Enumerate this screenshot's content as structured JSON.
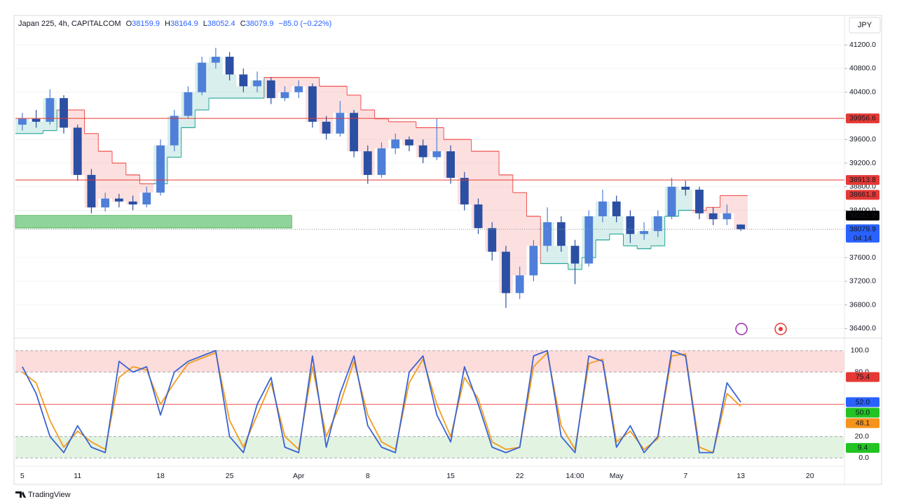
{
  "header": {
    "symbol": "Japan 225, 4h, CAPITALCOM",
    "ohlc": [
      {
        "key": "O",
        "value": 38159.9
      },
      {
        "key": "H",
        "value": 38164.9
      },
      {
        "key": "L",
        "value": 38052.4
      },
      {
        "key": "C",
        "value": 38079.9
      }
    ],
    "change": "−85.0 (−0.22%)"
  },
  "currency": "JPY",
  "footer": "TradingView",
  "chart_data": [
    {
      "type": "candlestick",
      "categories": [
        "5",
        null,
        null,
        null,
        "11",
        null,
        null,
        null,
        null,
        null,
        "18",
        null,
        null,
        null,
        null,
        "25",
        null,
        null,
        null,
        null,
        "Apr",
        null,
        null,
        null,
        null,
        "8",
        null,
        null,
        null,
        null,
        null,
        "15",
        null,
        null,
        null,
        null,
        "22",
        null,
        null,
        null,
        "14:00",
        null,
        null,
        "May",
        null,
        null,
        null,
        null,
        "7",
        null,
        null,
        null,
        "13",
        null,
        null,
        null,
        null,
        "20",
        null,
        null
      ],
      "open": [
        39850,
        39950,
        39900,
        40300,
        39800,
        39000,
        38450,
        38600,
        38550,
        38500,
        38700,
        39500,
        40000,
        40400,
        40900,
        41000,
        40700,
        40500,
        40600,
        40300,
        40400,
        40500,
        39900,
        39700,
        40050,
        39400,
        39000,
        39450,
        39600,
        39500,
        39300,
        39400,
        38950,
        38500,
        38100,
        37700,
        37000,
        37300,
        37800,
        38200,
        37800,
        37500,
        38300,
        38550,
        38300,
        38000,
        38050,
        38300,
        38800,
        38750,
        38350,
        38250,
        38159.9,
        null,
        null,
        null,
        null,
        null,
        null,
        null
      ],
      "high": [
        40050,
        40100,
        40450,
        40350,
        39850,
        39100,
        38700,
        38680,
        38650,
        38800,
        39600,
        40100,
        40500,
        41000,
        41150,
        41080,
        40800,
        40750,
        40650,
        40500,
        40600,
        40550,
        40000,
        40250,
        40100,
        39500,
        39550,
        39700,
        39650,
        39600,
        39950,
        39500,
        39050,
        38600,
        38200,
        37800,
        37450,
        37900,
        38450,
        38300,
        37900,
        38400,
        38750,
        38650,
        38400,
        38200,
        38400,
        38950,
        38900,
        38800,
        38450,
        38500,
        38164.9,
        null,
        null,
        null,
        null,
        null,
        null,
        null
      ],
      "low": [
        39750,
        39800,
        39850,
        39700,
        38900,
        38350,
        38380,
        38450,
        38400,
        38450,
        38650,
        39400,
        39950,
        40350,
        40800,
        40600,
        40400,
        40400,
        40200,
        40250,
        40300,
        39800,
        39600,
        39650,
        39300,
        38850,
        38950,
        39350,
        39400,
        39200,
        39250,
        38850,
        38400,
        38000,
        37550,
        36750,
        36900,
        37200,
        37700,
        37700,
        37150,
        37450,
        38200,
        38200,
        37850,
        37900,
        37950,
        38250,
        38650,
        38250,
        38150,
        38150,
        38052.4,
        null,
        null,
        null,
        null,
        null,
        null,
        null
      ],
      "close": [
        39950,
        39900,
        40300,
        39800,
        39000,
        38450,
        38600,
        38550,
        38500,
        38700,
        39500,
        40000,
        40400,
        40900,
        41000,
        40700,
        40500,
        40600,
        40300,
        40400,
        40500,
        39900,
        39700,
        40050,
        39400,
        39000,
        39450,
        39600,
        39500,
        39300,
        39400,
        38950,
        38500,
        38100,
        37700,
        37000,
        37300,
        37800,
        38200,
        37800,
        37500,
        38300,
        38550,
        38300,
        38000,
        38050,
        38300,
        38800,
        38750,
        38350,
        38250,
        38350,
        38079.9,
        null,
        null,
        null,
        null,
        null,
        null,
        null
      ],
      "up_color": "#4f7fd8",
      "down_color": "#2b4fa3",
      "ylim": [
        36250,
        41700
      ],
      "yticks": [
        {
          "value": 36400,
          "label": "36400.0"
        },
        {
          "value": 36800,
          "label": "36800.0"
        },
        {
          "value": 37200,
          "label": "37200.0"
        },
        {
          "value": 37600,
          "label": "37600.0"
        },
        {
          "value": 38400,
          "label": "38400.0"
        },
        {
          "value": 38800,
          "label": "38800.0"
        },
        {
          "value": 39200,
          "label": "39200.0"
        },
        {
          "value": 39600,
          "label": "39600.0"
        },
        {
          "value": 40400,
          "label": "40400.0"
        },
        {
          "value": 40800,
          "label": "40800.0"
        },
        {
          "value": 41200,
          "label": "41200.0"
        }
      ],
      "trail": {
        "values": [
          39700,
          39700,
          39750,
          40100,
          40100,
          39700,
          39400,
          39200,
          39000,
          38850,
          38850,
          39300,
          39800,
          40100,
          40300,
          40300,
          40300,
          40300,
          40650,
          40650,
          40650,
          40650,
          40500,
          40500,
          40350,
          40100,
          39950,
          39900,
          39900,
          39800,
          39800,
          39600,
          39600,
          39400,
          39400,
          39000,
          38700,
          38300,
          37500,
          37500,
          37400,
          37600,
          37900,
          38000,
          37800,
          37750,
          37800,
          38300,
          38400,
          38400,
          38450,
          38650,
          38650,
          null,
          null,
          null,
          null,
          null,
          null,
          null
        ],
        "up_color": "#26a69a",
        "down_color": "#ef5350"
      },
      "zones": [
        {
          "x": [
            0,
            19
          ],
          "low": 38100,
          "high": 38315,
          "color": "#8fd49a"
        }
      ],
      "levels": [
        {
          "value": 39956.6,
          "color": "#e53935",
          "line": "solid"
        },
        {
          "value": 38913.8,
          "color": "#e53935",
          "line": "solid"
        },
        {
          "value": 38661.8,
          "color": "#e53935"
        },
        {
          "value": 38311,
          "label": "38311.0",
          "color": "#000000"
        },
        {
          "value": 38079.9,
          "color": "#2962ff",
          "line": "dotted",
          "countdown": "04:14"
        }
      ]
    },
    {
      "type": "oscillator",
      "series": [
        {
          "color": "#f39c1e",
          "values": [
            80,
            70,
            35,
            10,
            25,
            15,
            8,
            75,
            85,
            82,
            50,
            70,
            88,
            93,
            98,
            35,
            10,
            40,
            70,
            20,
            8,
            85,
            20,
            50,
            90,
            40,
            15,
            8,
            70,
            92,
            50,
            20,
            75,
            55,
            15,
            8,
            10,
            85,
            98,
            30,
            8,
            88,
            92,
            15,
            25,
            8,
            18,
            95,
            97,
            10,
            5,
            60,
            48.1,
            null,
            null,
            null,
            null,
            null,
            null,
            null
          ]
        },
        {
          "color": "#3b63d1",
          "values": [
            85,
            60,
            20,
            5,
            30,
            10,
            5,
            90,
            80,
            85,
            40,
            80,
            90,
            95,
            100,
            20,
            5,
            50,
            75,
            10,
            5,
            95,
            10,
            60,
            95,
            30,
            10,
            5,
            80,
            95,
            40,
            15,
            85,
            50,
            10,
            5,
            10,
            95,
            100,
            20,
            5,
            95,
            90,
            10,
            30,
            5,
            20,
            100,
            95,
            5,
            5,
            70,
            52,
            null,
            null,
            null,
            null,
            null,
            null,
            null
          ]
        }
      ],
      "ylim": [
        -7,
        111
      ],
      "yticks": [
        {
          "value": 0,
          "label": "0.0"
        },
        {
          "value": 20,
          "label": "20.0"
        },
        {
          "value": 40,
          "label": "40.0"
        },
        {
          "value": 80,
          "label": "80.0"
        },
        {
          "value": 100,
          "label": "100.0"
        }
      ],
      "bands": [
        {
          "from": 80,
          "to": 100,
          "color": "#fddcdc"
        },
        {
          "from": 0,
          "to": 20,
          "color": "#e2f3e2"
        }
      ],
      "midline": {
        "value": 50,
        "color": "#ef5350"
      },
      "levels": [
        {
          "value": 75.4,
          "color": "#e53935"
        },
        {
          "value": 52,
          "label": "52.0",
          "color": "#2962ff"
        },
        {
          "value": 50,
          "label": "50.0",
          "color": "#22c322"
        },
        {
          "value": 48.1,
          "color": "#f7931a"
        },
        {
          "value": 9.4,
          "color": "#22c322"
        }
      ]
    }
  ]
}
